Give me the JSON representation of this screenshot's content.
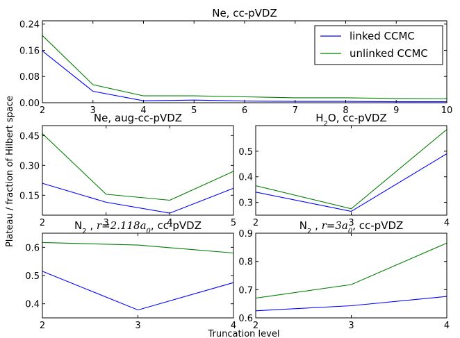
{
  "figure": {
    "xlabel": "Truncation level",
    "ylabel": "Plateau / fraction of Hilbert space"
  },
  "colors": {
    "linked": "#0000ff",
    "unlinked": "#007f00"
  },
  "chart_data": [
    {
      "type": "line",
      "title": "Ne, cc-pVDZ",
      "x": [
        2,
        3,
        4,
        5,
        6,
        7,
        8,
        9,
        10
      ],
      "xlim": [
        2,
        10
      ],
      "ylim": [
        0,
        0.25
      ],
      "xticks": [
        "2",
        "3",
        "4",
        "5",
        "6",
        "7",
        "8",
        "9",
        "10"
      ],
      "yticks": [
        "0.00",
        "0.08",
        "0.16",
        "0.24"
      ],
      "legend": {
        "position": "upper-right",
        "entries": [
          "linked CCMC",
          "unlinked CCMC"
        ]
      },
      "series": [
        {
          "name": "linked CCMC",
          "values": [
            0.158,
            0.035,
            0.006,
            0.008,
            0.005,
            0.004,
            0.004,
            0.003,
            0.003
          ]
        },
        {
          "name": "unlinked CCMC",
          "values": [
            0.205,
            0.055,
            0.021,
            0.021,
            0.018,
            0.015,
            0.015,
            0.013,
            0.012
          ]
        }
      ]
    },
    {
      "type": "line",
      "title": "Ne, aug-cc-pVDZ",
      "x": [
        2,
        3,
        4,
        5
      ],
      "xlim": [
        2,
        5
      ],
      "ylim": [
        0.05,
        0.5
      ],
      "xticks": [
        "2",
        "3",
        "4",
        "5"
      ],
      "yticks": [
        "0.15",
        "0.30",
        "0.45"
      ],
      "series": [
        {
          "name": "linked CCMC",
          "values": [
            0.21,
            0.115,
            0.06,
            0.185
          ]
        },
        {
          "name": "unlinked CCMC",
          "values": [
            0.46,
            0.155,
            0.125,
            0.27
          ]
        }
      ]
    },
    {
      "type": "line",
      "title": "H2O, cc-pVDZ",
      "x": [
        2,
        3,
        4
      ],
      "xlim": [
        2,
        4
      ],
      "ylim": [
        0.25,
        0.6
      ],
      "xticks": [
        "2",
        "3",
        "4"
      ],
      "yticks": [
        "0.3",
        "0.4",
        "0.5"
      ],
      "series": [
        {
          "name": "linked CCMC",
          "values": [
            0.34,
            0.265,
            0.49
          ]
        },
        {
          "name": "unlinked CCMC",
          "values": [
            0.365,
            0.275,
            0.585
          ]
        }
      ]
    },
    {
      "type": "line",
      "title": "N2 , r=2.118a0, cc-pVDZ",
      "x": [
        2,
        3,
        4
      ],
      "xlim": [
        2,
        4
      ],
      "ylim": [
        0.35,
        0.65
      ],
      "xticks": [
        "2",
        "3",
        "4"
      ],
      "yticks": [
        "0.4",
        "0.5",
        "0.6"
      ],
      "series": [
        {
          "name": "linked CCMC",
          "values": [
            0.515,
            0.378,
            0.475
          ]
        },
        {
          "name": "unlinked CCMC",
          "values": [
            0.617,
            0.608,
            0.58
          ]
        }
      ]
    },
    {
      "type": "line",
      "title": "N2 , r=3a0, cc-pVDZ",
      "x": [
        2,
        3,
        4
      ],
      "xlim": [
        2,
        4
      ],
      "ylim": [
        0.6,
        0.9
      ],
      "xticks": [
        "2",
        "3",
        "4"
      ],
      "yticks": [
        "0.6",
        "0.7",
        "0.8",
        "0.9"
      ],
      "series": [
        {
          "name": "linked CCMC",
          "values": [
            0.625,
            0.643,
            0.676
          ]
        },
        {
          "name": "unlinked CCMC",
          "values": [
            0.67,
            0.718,
            0.865
          ]
        }
      ]
    }
  ]
}
